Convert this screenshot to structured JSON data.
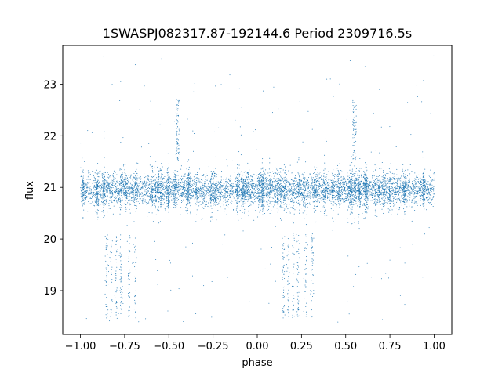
{
  "chart_data": {
    "type": "scatter",
    "title": "1SWASPJ082317.87-192144.6 Period 2309716.5s",
    "xlabel": "phase",
    "ylabel": "flux",
    "xlim": [
      -1.1,
      1.1
    ],
    "ylim": [
      18.15,
      23.75
    ],
    "x_ticks": [
      -1.0,
      -0.75,
      -0.5,
      -0.25,
      0.0,
      0.25,
      0.5,
      0.75,
      1.0
    ],
    "x_tick_labels": [
      "−1.00",
      "−0.75",
      "−0.50",
      "−0.25",
      "0.00",
      "0.25",
      "0.50",
      "0.75",
      "1.00"
    ],
    "y_ticks": [
      19,
      20,
      21,
      22,
      23
    ],
    "y_tick_labels": [
      "19",
      "20",
      "21",
      "22",
      "23"
    ],
    "grid": false,
    "legend": "none",
    "point_color": "#1f77b4",
    "phase_range": [
      -1.0,
      1.0
    ],
    "baseline_flux": 20.95,
    "baseline_scatter": 0.15,
    "dip_segments": [
      {
        "x": [
          -0.86,
          -0.68
        ],
        "y": [
          18.45,
          20.1
        ]
      },
      {
        "x": [
          0.14,
          0.32
        ],
        "y": [
          18.45,
          20.1
        ]
      }
    ],
    "spike_segments": [
      {
        "x": [
          -0.46,
          -0.44
        ],
        "y": [
          21.5,
          22.7
        ]
      },
      {
        "x": [
          0.54,
          0.56
        ],
        "y": [
          21.5,
          22.7
        ]
      }
    ]
  }
}
